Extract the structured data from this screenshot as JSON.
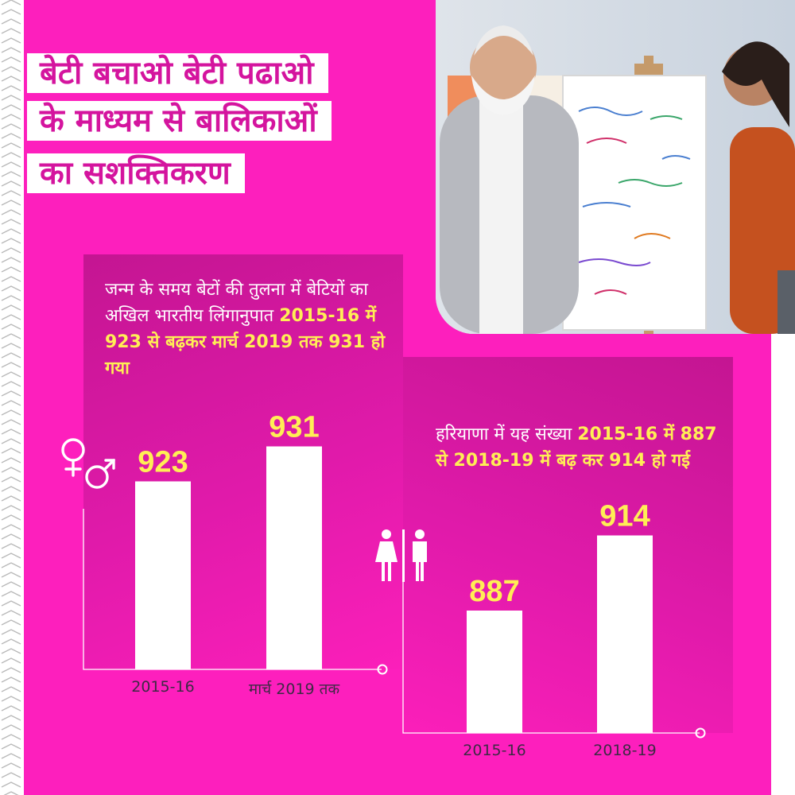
{
  "title": {
    "lines": [
      "बेटी बचाओ बेटी पढाओ",
      "के माध्यम से बालिकाओं",
      "का सशक्तिकरण"
    ]
  },
  "panel1": {
    "text": "जन्म के समय बेटों की तुलना में बेटियों का अखिल भारतीय लिंगानुपात",
    "highlight": "2015-16 में 923 से बढ़कर मार्च 2019 तक 931 हो गया",
    "icon": "female-male-symbol-icon"
  },
  "panel2": {
    "text": "हरियाणा में यह संख्या",
    "highlight": "2015-16 में 887 से 2018-19 में बढ़ कर 914 हो गई",
    "icon": "woman-man-restroom-icon"
  },
  "colors": {
    "background": "#fd1fbd",
    "title_text": "#d4149e",
    "bar": "#ffffff",
    "value_label": "#ffee55",
    "axis_label": "#3d2a44"
  },
  "chart_data": [
    {
      "type": "bar",
      "categories": [
        "2015-16",
        "मार्च 2019 तक"
      ],
      "values": [
        923,
        931
      ],
      "data_labels": [
        "923",
        "931"
      ]
    },
    {
      "type": "bar",
      "categories": [
        "2015-16",
        "2018-19"
      ],
      "values": [
        887,
        914
      ],
      "data_labels": [
        "887",
        "914"
      ]
    }
  ]
}
